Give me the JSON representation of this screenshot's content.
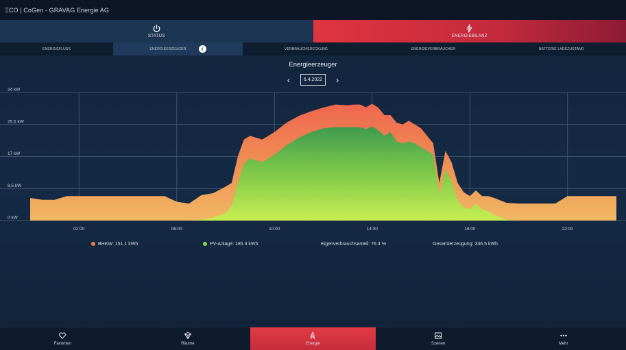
{
  "app": {
    "title": "ΞCO | CoGen - GRAVAG Energie AG"
  },
  "main_nav": [
    {
      "label": "STATUS",
      "icon": "power-icon"
    },
    {
      "label": "ENERGIEBILANZ",
      "icon": "lightning-icon"
    }
  ],
  "sub_tabs": [
    {
      "label": "ENERGIEFLUSS"
    },
    {
      "label": "ENERGIEERZEUGER"
    },
    {
      "label": "VERBRAUCHSDECKUNG"
    },
    {
      "label": "ENERGIEVERBRAUCHER"
    },
    {
      "label": "BATTERIE LADEZUSTAND"
    }
  ],
  "active_sub_tab": "ENERGIEERZEUGER",
  "info_icon": "i",
  "date_nav": {
    "date": "6.4.2022",
    "prev_icon": "chevron-left-icon",
    "next_icon": "chevron-right-icon",
    "prev": "‹",
    "next": "›"
  },
  "colors": {
    "bhkw": "#ef7a4a",
    "pv": "#8fd14e",
    "accent": "#e0353f"
  },
  "chart_data": {
    "type": "area",
    "stacked": true,
    "title": "Energieerzeuger",
    "xlim": [
      0,
      24
    ],
    "xticks": [
      "02:00",
      "06:00",
      "10:00",
      "14:00",
      "18:00",
      "22:00"
    ],
    "yticks": [
      "0 kW",
      "8.5 kW",
      "17 kW",
      "25.5 kW",
      "34 kW"
    ],
    "ylim": [
      0,
      34
    ],
    "grid": true,
    "x": [
      0,
      0.5,
      1,
      1.5,
      2,
      2.5,
      3,
      3.5,
      4,
      4.5,
      5,
      5.5,
      6,
      6.5,
      7,
      7.5,
      8,
      8.25,
      8.5,
      8.75,
      9,
      9.25,
      9.5,
      10,
      10.5,
      11,
      11.5,
      12,
      12.5,
      13,
      13.25,
      13.5,
      13.75,
      14,
      14.25,
      14.5,
      14.75,
      15,
      15.25,
      15.5,
      15.75,
      16,
      16.5,
      16.75,
      17,
      17.25,
      17.5,
      17.75,
      18,
      18.25,
      18.5,
      18.75,
      19,
      19.5,
      20,
      20.5,
      21,
      21.5,
      22,
      22.5,
      23,
      23.5,
      24
    ],
    "series": [
      {
        "name": "PV-Anlage",
        "values": [
          0,
          0,
          0,
          0,
          0,
          0,
          0,
          0,
          0,
          0,
          0,
          0,
          0,
          0,
          0.2,
          0.8,
          2,
          4,
          10,
          15,
          16.5,
          16,
          15.5,
          17.5,
          20,
          22,
          23.5,
          24.5,
          24.8,
          24.8,
          24.8,
          24.8,
          24.3,
          25,
          24,
          22.5,
          23.5,
          21,
          20.5,
          21,
          20.5,
          19.5,
          17.5,
          7,
          13.5,
          10.5,
          5.5,
          3.5,
          3,
          4.5,
          3,
          2.5,
          1.5,
          0.2,
          0,
          0,
          0,
          0,
          0,
          0,
          0,
          0,
          0
        ]
      },
      {
        "name": "BHKW",
        "values": [
          6,
          5.5,
          5.5,
          6.5,
          6.5,
          6.5,
          6.5,
          6.5,
          6.5,
          6.5,
          6.5,
          6.5,
          5,
          4.5,
          6.5,
          6.5,
          7,
          6,
          7,
          6.5,
          6,
          6,
          6,
          6,
          6,
          5.8,
          5.5,
          5.5,
          6,
          5.8,
          6,
          6,
          5.8,
          6,
          6,
          5.5,
          4.5,
          5,
          5,
          5.5,
          5,
          5,
          3,
          3,
          5,
          5,
          4.5,
          4,
          3.5,
          3.5,
          3.5,
          4,
          4.5,
          4.5,
          4.5,
          4.5,
          4.5,
          4.5,
          6.5,
          6.5,
          6.5,
          6.5,
          6.5
        ]
      }
    ]
  },
  "legend": {
    "bhkw": "BHKW: 151.1 kWh",
    "pv": "PV-Anlage: 185.3 kWh",
    "eigenverbrauch": "Eigenverbrauchsanteil: 76.4 %",
    "gesamt": "Gesamterzeugung: 336.5 kWh"
  },
  "bottom_nav": [
    {
      "label": "Favoriten",
      "icon": "heart-icon"
    },
    {
      "label": "Räume",
      "icon": "cube-icon"
    },
    {
      "label": "Energie",
      "icon": "energy-icon"
    },
    {
      "label": "Szenen",
      "icon": "image-icon"
    },
    {
      "label": "Mehr",
      "icon": "more-icon"
    }
  ]
}
